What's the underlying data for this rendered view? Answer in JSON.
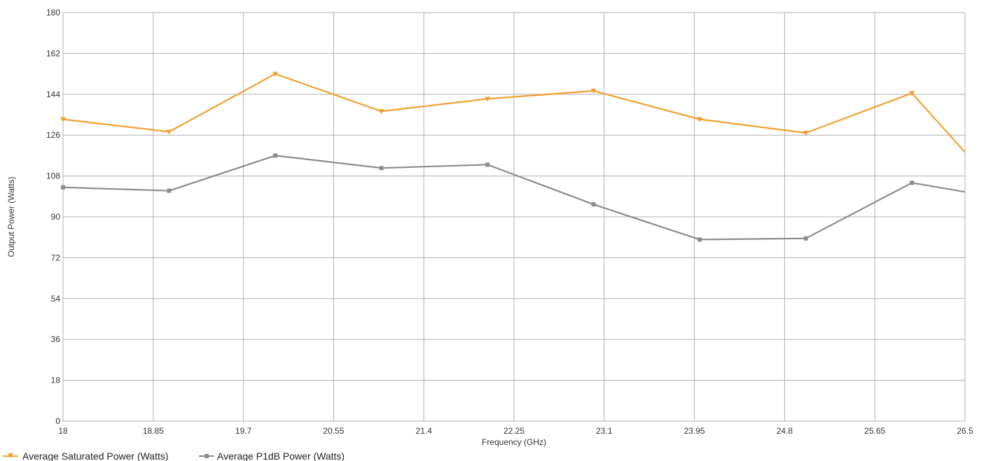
{
  "chart_data": {
    "type": "line",
    "xlabel": "Frequency (GHz)",
    "ylabel": "Output Power (Watts)",
    "xlim": [
      18,
      26.5
    ],
    "ylim": [
      0,
      180
    ],
    "x_ticks": [
      "18",
      "18.85",
      "19.7",
      "20.55",
      "21.4",
      "22.25",
      "23.1",
      "23.95",
      "24.8",
      "25.65",
      "26.5"
    ],
    "y_ticks": [
      "0",
      "18",
      "36",
      "54",
      "72",
      "90",
      "108",
      "126",
      "144",
      "162",
      "180"
    ],
    "grid": true,
    "legend_position": "bottom-left",
    "x": [
      18,
      19,
      20,
      21,
      22,
      23,
      24,
      25,
      26,
      26.5
    ],
    "series": [
      {
        "name": "Average Saturated Power (Watts)",
        "color": "#f0a030",
        "marker": "triangle-down",
        "values": [
          133,
          127.5,
          153,
          136.5,
          142,
          145.5,
          133,
          127,
          144.5,
          118.5
        ]
      },
      {
        "name": "Average P1dB Power (Watts)",
        "color": "#8c8c8c",
        "marker": "square",
        "values": [
          103,
          101.5,
          117,
          111.5,
          113,
          95.5,
          80,
          80.5,
          105,
          101
        ]
      }
    ]
  }
}
